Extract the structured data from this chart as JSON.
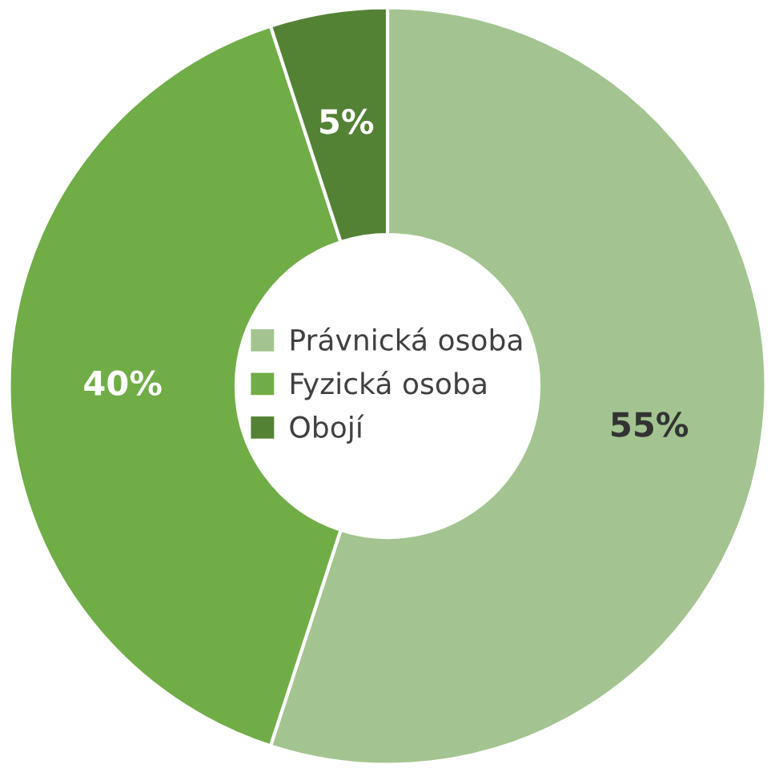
{
  "chart_data": {
    "type": "donut",
    "categories": [
      "Právnická osoba",
      "Fyzická osoba",
      "Obojí"
    ],
    "values": [
      55,
      40,
      5
    ],
    "colors": [
      "#a3c490",
      "#70ad47",
      "#548235"
    ],
    "value_labels": [
      "55%",
      "40%",
      "5%"
    ],
    "legend": "center"
  }
}
